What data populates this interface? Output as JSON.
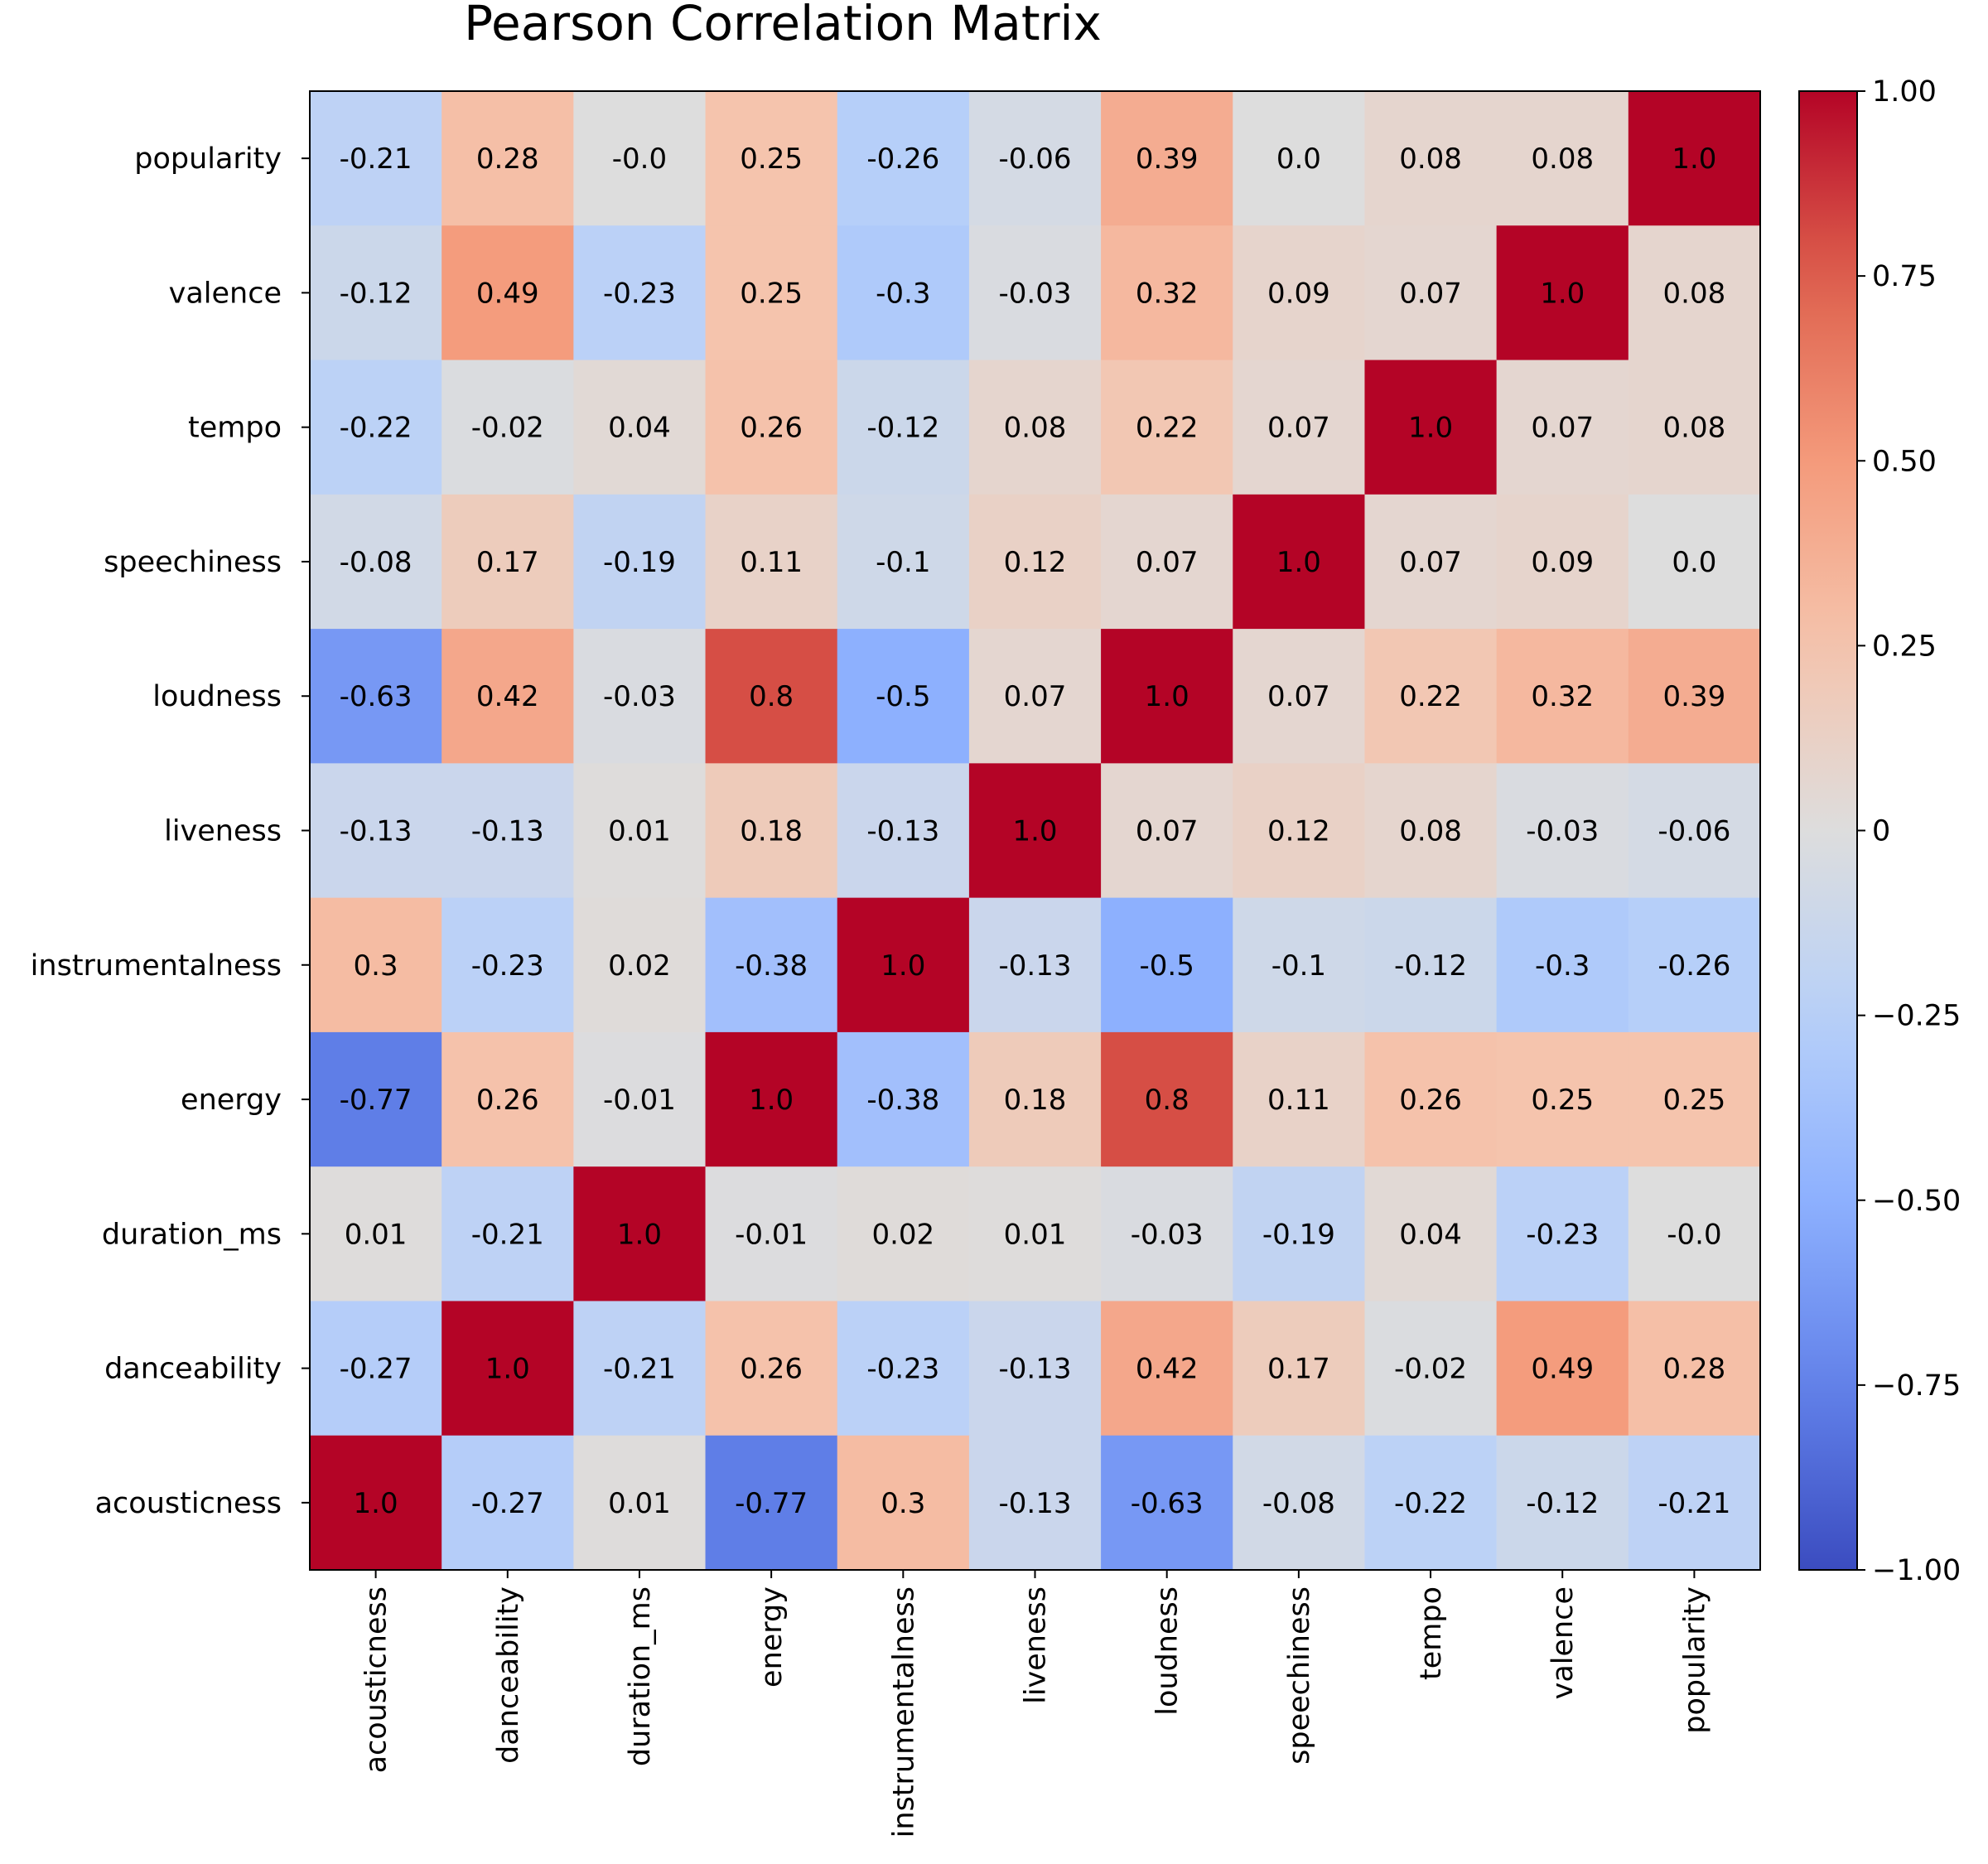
{
  "chart_data": {
    "type": "heatmap",
    "title": "Pearson Correlation Matrix",
    "xlabel": "",
    "ylabel": "",
    "x_labels": [
      "acousticness",
      "danceability",
      "duration_ms",
      "energy",
      "instrumentalness",
      "liveness",
      "loudness",
      "speechiness",
      "tempo",
      "valence",
      "popularity"
    ],
    "y_labels_top_to_bottom": [
      "popularity",
      "valence",
      "tempo",
      "speechiness",
      "loudness",
      "liveness",
      "instrumentalness",
      "energy",
      "duration_ms",
      "danceability",
      "acousticness"
    ],
    "cell_labels": [
      [
        "-0.21",
        "0.28",
        "-0.0",
        "0.25",
        "-0.26",
        "-0.06",
        "0.39",
        "0.0",
        "0.08",
        "0.08",
        "1.0"
      ],
      [
        "-0.12",
        "0.49",
        "-0.23",
        "0.25",
        "-0.3",
        "-0.03",
        "0.32",
        "0.09",
        "0.07",
        "1.0",
        "0.08"
      ],
      [
        "-0.22",
        "-0.02",
        "0.04",
        "0.26",
        "-0.12",
        "0.08",
        "0.22",
        "0.07",
        "1.0",
        "0.07",
        "0.08"
      ],
      [
        "-0.08",
        "0.17",
        "-0.19",
        "0.11",
        "-0.1",
        "0.12",
        "0.07",
        "1.0",
        "0.07",
        "0.09",
        "0.0"
      ],
      [
        "-0.63",
        "0.42",
        "-0.03",
        "0.8",
        "-0.5",
        "0.07",
        "1.0",
        "0.07",
        "0.22",
        "0.32",
        "0.39"
      ],
      [
        "-0.13",
        "-0.13",
        "0.01",
        "0.18",
        "-0.13",
        "1.0",
        "0.07",
        "0.12",
        "0.08",
        "-0.03",
        "-0.06"
      ],
      [
        "0.3",
        "-0.23",
        "0.02",
        "-0.38",
        "1.0",
        "-0.13",
        "-0.5",
        "-0.1",
        "-0.12",
        "-0.3",
        "-0.26"
      ],
      [
        "-0.77",
        "0.26",
        "-0.01",
        "1.0",
        "-0.38",
        "0.18",
        "0.8",
        "0.11",
        "0.26",
        "0.25",
        "0.25"
      ],
      [
        "0.01",
        "-0.21",
        "1.0",
        "-0.01",
        "0.02",
        "0.01",
        "-0.03",
        "-0.19",
        "0.04",
        "-0.23",
        "-0.0"
      ],
      [
        "-0.27",
        "1.0",
        "-0.21",
        "0.26",
        "-0.23",
        "-0.13",
        "0.42",
        "0.17",
        "-0.02",
        "0.49",
        "0.28"
      ],
      [
        "1.0",
        "-0.27",
        "0.01",
        "-0.77",
        "0.3",
        "-0.13",
        "-0.63",
        "-0.08",
        "-0.22",
        "-0.12",
        "-0.21"
      ]
    ],
    "colormap": "coolwarm",
    "vmin": -1.0,
    "vmax": 1.0,
    "colorbar_ticks": [
      {
        "value": 1.0,
        "label": "1.00"
      },
      {
        "value": 0.75,
        "label": "0.75"
      },
      {
        "value": 0.5,
        "label": "0.50"
      },
      {
        "value": 0.25,
        "label": "0.25"
      },
      {
        "value": 0,
        "label": "0"
      },
      {
        "value": -0.25,
        "label": "−0.25"
      },
      {
        "value": -0.5,
        "label": "−0.50"
      },
      {
        "value": -0.75,
        "label": "−0.75"
      },
      {
        "value": -1.0,
        "label": "−1.00"
      }
    ],
    "grid": false,
    "legend": "colorbar-right"
  }
}
